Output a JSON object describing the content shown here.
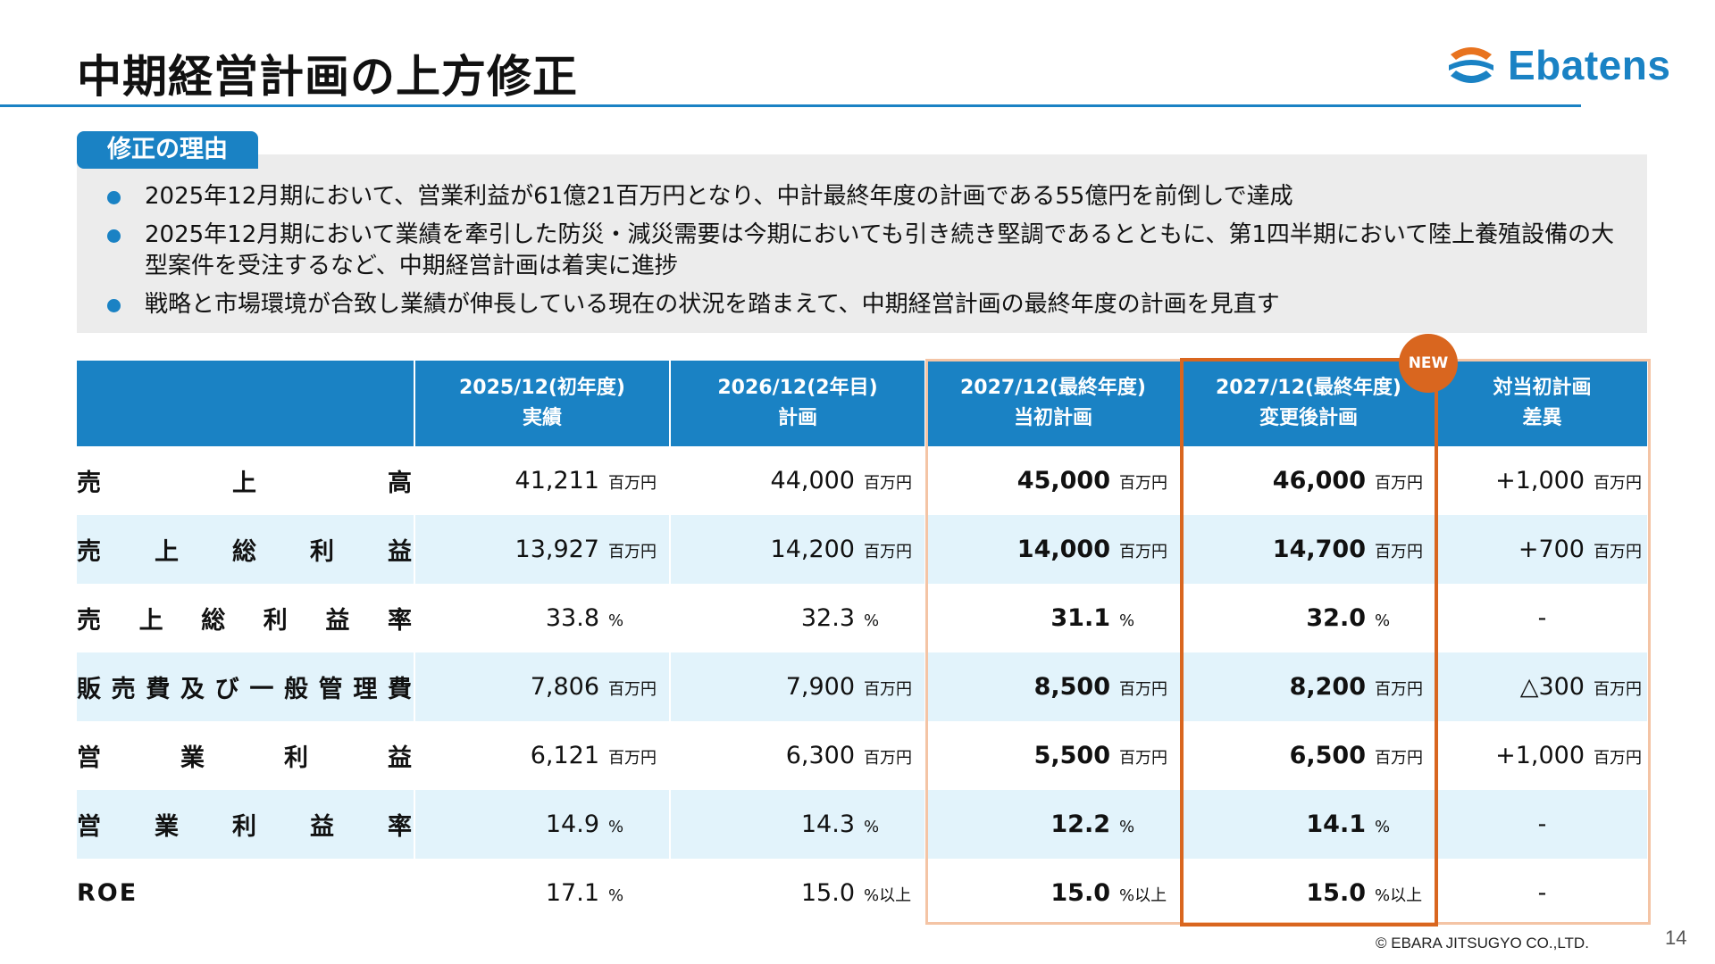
{
  "header": {
    "title": "中期経営計画の上方修正",
    "logo_text": "Ebatens",
    "logo_icon": "ebatens-logo-icon"
  },
  "reasons": {
    "tag": "修正の理由",
    "items": [
      "2025年12月期において、営業利益が61億21百万円となり、中計最終年度の計画である55億円を前倒しで達成",
      "2025年12月期において業績を牽引した防災・減災需要は今期においても引き続き堅調であるとともに、第1四半期において陸上養殖設備の大型案件を受注するなど、中期経営計画は着実に進捗",
      "戦略と市場環境が合致し業績が伸長している現在の状況を踏まえて、中期経営計画の最終年度の計画を見直す"
    ]
  },
  "table": {
    "headers": [
      {
        "line1": "2025/12(初年度)",
        "line2": "実績"
      },
      {
        "line1": "2026/12(2年目)",
        "line2": "計画"
      },
      {
        "line1": "2027/12(最終年度)",
        "line2": "当初計画"
      },
      {
        "line1": "2027/12(最終年度)",
        "line2": "変更後計画"
      },
      {
        "line1": "対当初計画",
        "line2": "差異"
      }
    ],
    "rows": [
      {
        "label": "売上高",
        "c1": {
          "v": "41,211",
          "u": "百万円"
        },
        "c2": {
          "v": "44,000",
          "u": "百万円"
        },
        "c3": {
          "v": "45,000",
          "u": "百万円"
        },
        "c4": {
          "v": "46,000",
          "u": "百万円"
        },
        "diff": {
          "v": "+1,000",
          "u": "百万円"
        }
      },
      {
        "label": "売上総利益",
        "c1": {
          "v": "13,927",
          "u": "百万円"
        },
        "c2": {
          "v": "14,200",
          "u": "百万円"
        },
        "c3": {
          "v": "14,000",
          "u": "百万円"
        },
        "c4": {
          "v": "14,700",
          "u": "百万円"
        },
        "diff": {
          "v": "+700",
          "u": "百万円"
        }
      },
      {
        "label": "売上総利益率",
        "c1": {
          "v": "33.8",
          "u": "%"
        },
        "c2": {
          "v": "32.3",
          "u": "%"
        },
        "c3": {
          "v": "31.1",
          "u": "%"
        },
        "c4": {
          "v": "32.0",
          "u": "%"
        },
        "diff": {
          "v": "-",
          "u": ""
        }
      },
      {
        "label": "販売費及び一般管理費",
        "c1": {
          "v": "7,806",
          "u": "百万円"
        },
        "c2": {
          "v": "7,900",
          "u": "百万円"
        },
        "c3": {
          "v": "8,500",
          "u": "百万円"
        },
        "c4": {
          "v": "8,200",
          "u": "百万円"
        },
        "diff": {
          "v": "△300",
          "u": "百万円"
        }
      },
      {
        "label": "営業利益",
        "c1": {
          "v": "6,121",
          "u": "百万円"
        },
        "c2": {
          "v": "6,300",
          "u": "百万円"
        },
        "c3": {
          "v": "5,500",
          "u": "百万円"
        },
        "c4": {
          "v": "6,500",
          "u": "百万円"
        },
        "diff": {
          "v": "+1,000",
          "u": "百万円"
        }
      },
      {
        "label": "営業利益率",
        "c1": {
          "v": "14.9",
          "u": "%"
        },
        "c2": {
          "v": "14.3",
          "u": "%"
        },
        "c3": {
          "v": "12.2",
          "u": "%"
        },
        "c4": {
          "v": "14.1",
          "u": "%"
        },
        "diff": {
          "v": "-",
          "u": ""
        }
      },
      {
        "label": "ROE",
        "c1": {
          "v": "17.1",
          "u": "%"
        },
        "c2": {
          "v": "15.0",
          "u": "%以上"
        },
        "c3": {
          "v": "15.0",
          "u": "%以上"
        },
        "c4": {
          "v": "15.0",
          "u": "%以上"
        },
        "diff": {
          "v": "-",
          "u": ""
        }
      }
    ],
    "new_badge": "NEW"
  },
  "footer": {
    "copyright": "© EBARA JITSUGYO CO.,LTD.",
    "page_number": "14"
  },
  "colors": {
    "brand_blue": "#1a82c4",
    "accent_orange": "#d9661f",
    "frame_peach": "#f4c4a5",
    "row_tint": "#e2f3fb"
  }
}
